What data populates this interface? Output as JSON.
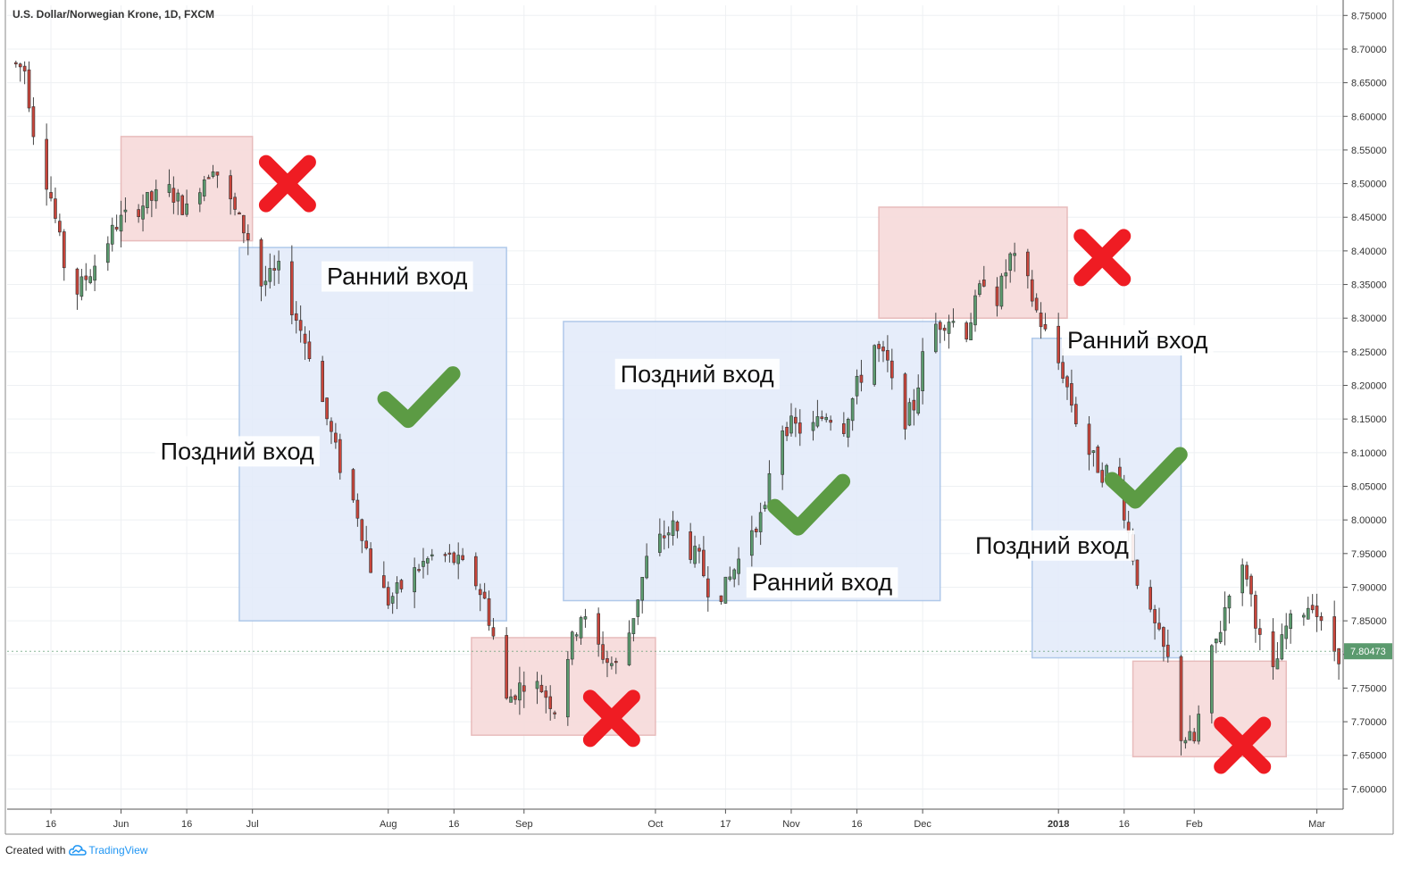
{
  "header": {
    "title": "U.S. Dollar/Norwegian Krone, 1D, FXCM"
  },
  "footer": {
    "created_with": "Created with",
    "brand": "TradingView"
  },
  "chart_data": {
    "type": "candlestick",
    "y_ticks": [
      "8.75000",
      "8.70000",
      "8.65000",
      "8.60000",
      "8.55000",
      "8.50000",
      "8.45000",
      "8.40000",
      "8.35000",
      "8.30000",
      "8.25000",
      "8.20000",
      "8.15000",
      "8.10000",
      "8.05000",
      "8.00000",
      "7.95000",
      "7.90000",
      "7.85000",
      "7.80000",
      "7.75000",
      "7.70000",
      "7.65000",
      "7.60000"
    ],
    "ylim": [
      7.57,
      8.765
    ],
    "last_price": "7.80473",
    "x_ticks": [
      {
        "label": "16",
        "x": "2017-05-16"
      },
      {
        "label": "Jun",
        "x": "2017-06-01"
      },
      {
        "label": "16",
        "x": "2017-06-16"
      },
      {
        "label": "Jul",
        "x": "2017-07-01"
      },
      {
        "label": "Aug",
        "x": "2017-08-01"
      },
      {
        "label": "16",
        "x": "2017-08-16"
      },
      {
        "label": "Sep",
        "x": "2017-09-01"
      },
      {
        "label": "Oct",
        "x": "2017-10-01"
      },
      {
        "label": "17",
        "x": "2017-10-17"
      },
      {
        "label": "Nov",
        "x": "2017-11-01"
      },
      {
        "label": "16",
        "x": "2017-11-16"
      },
      {
        "label": "Dec",
        "x": "2017-12-01"
      },
      {
        "label": "2018",
        "x": "2018-01-01",
        "bold": true
      },
      {
        "label": "16",
        "x": "2018-01-16"
      },
      {
        "label": "Feb",
        "x": "2018-02-01"
      },
      {
        "label": "Mar",
        "x": "2018-03-01"
      }
    ],
    "xlim": [
      "2017-05-06",
      "2018-03-07"
    ],
    "price_path": [
      [
        "2017-05-07",
        8.68
      ],
      [
        "2017-05-10",
        8.67
      ],
      [
        "2017-05-12",
        8.58
      ],
      [
        "2017-05-16",
        8.48
      ],
      [
        "2017-05-19",
        8.38
      ],
      [
        "2017-05-22",
        8.34
      ],
      [
        "2017-05-26",
        8.38
      ],
      [
        "2017-05-31",
        8.44
      ],
      [
        "2017-06-06",
        8.47
      ],
      [
        "2017-06-12",
        8.49
      ],
      [
        "2017-06-16",
        8.46
      ],
      [
        "2017-06-19",
        8.5
      ],
      [
        "2017-06-22",
        8.53
      ],
      [
        "2017-06-26",
        8.47
      ],
      [
        "2017-06-30",
        8.42
      ],
      [
        "2017-07-03",
        8.35
      ],
      [
        "2017-07-07",
        8.37
      ],
      [
        "2017-07-11",
        8.3
      ],
      [
        "2017-07-14",
        8.25
      ],
      [
        "2017-07-18",
        8.15
      ],
      [
        "2017-07-21",
        8.08
      ],
      [
        "2017-07-25",
        8.01
      ],
      [
        "2017-07-28",
        7.93
      ],
      [
        "2017-08-01",
        7.88
      ],
      [
        "2017-08-04",
        7.9
      ],
      [
        "2017-08-08",
        7.93
      ],
      [
        "2017-08-12",
        7.95
      ],
      [
        "2017-08-16",
        7.94
      ],
      [
        "2017-08-20",
        7.92
      ],
      [
        "2017-08-23",
        7.88
      ],
      [
        "2017-08-26",
        7.8
      ],
      [
        "2017-08-28",
        7.73
      ],
      [
        "2017-09-01",
        7.76
      ],
      [
        "2017-09-05",
        7.75
      ],
      [
        "2017-09-08",
        7.72
      ],
      [
        "2017-09-11",
        7.8
      ],
      [
        "2017-09-14",
        7.86
      ],
      [
        "2017-09-17",
        7.82
      ],
      [
        "2017-09-20",
        7.79
      ],
      [
        "2017-09-23",
        7.78
      ],
      [
        "2017-09-26",
        7.86
      ],
      [
        "2017-09-29",
        7.94
      ],
      [
        "2017-10-02",
        7.97
      ],
      [
        "2017-10-05",
        7.99
      ],
      [
        "2017-10-08",
        7.96
      ],
      [
        "2017-10-11",
        7.94
      ],
      [
        "2017-10-14",
        7.88
      ],
      [
        "2017-10-17",
        7.9
      ],
      [
        "2017-10-20",
        7.94
      ],
      [
        "2017-10-23",
        7.99
      ],
      [
        "2017-10-26",
        8.01
      ],
      [
        "2017-10-28",
        8.14
      ],
      [
        "2017-11-01",
        8.14
      ],
      [
        "2017-11-05",
        8.13
      ],
      [
        "2017-11-09",
        8.16
      ],
      [
        "2017-11-13",
        8.14
      ],
      [
        "2017-11-16",
        8.2
      ],
      [
        "2017-11-20",
        8.26
      ],
      [
        "2017-11-23",
        8.23
      ],
      [
        "2017-11-26",
        8.14
      ],
      [
        "2017-11-29",
        8.17
      ],
      [
        "2017-12-01",
        8.24
      ],
      [
        "2017-12-04",
        8.29
      ],
      [
        "2017-12-07",
        8.3
      ],
      [
        "2017-12-11",
        8.28
      ],
      [
        "2017-12-15",
        8.36
      ],
      [
        "2017-12-18",
        8.33
      ],
      [
        "2017-12-21",
        8.39
      ],
      [
        "2017-12-24",
        8.37
      ],
      [
        "2017-12-27",
        8.31
      ],
      [
        "2017-12-30",
        8.26
      ],
      [
        "2018-01-02",
        8.22
      ],
      [
        "2018-01-05",
        8.15
      ],
      [
        "2018-01-08",
        8.1
      ],
      [
        "2018-01-11",
        8.07
      ],
      [
        "2018-01-14",
        8.08
      ],
      [
        "2018-01-17",
        7.98
      ],
      [
        "2018-01-20",
        7.88
      ],
      [
        "2018-01-23",
        7.84
      ],
      [
        "2018-01-26",
        7.79
      ],
      [
        "2018-01-29",
        7.68
      ],
      [
        "2018-02-01",
        7.67
      ],
      [
        "2018-02-04",
        7.78
      ],
      [
        "2018-02-07",
        7.84
      ],
      [
        "2018-02-10",
        7.93
      ],
      [
        "2018-02-13",
        7.92
      ],
      [
        "2018-02-16",
        7.82
      ],
      [
        "2018-02-19",
        7.77
      ],
      [
        "2018-02-22",
        7.84
      ],
      [
        "2018-02-25",
        7.86
      ],
      [
        "2018-02-28",
        7.88
      ],
      [
        "2018-03-03",
        7.82
      ],
      [
        "2018-03-06",
        7.8
      ]
    ],
    "zones": [
      {
        "kind": "blue",
        "x0": "2017-06-28",
        "x1": "2017-08-28",
        "y0": 7.85,
        "y1": 8.405
      },
      {
        "kind": "blue",
        "x0": "2017-09-10",
        "x1": "2017-12-05",
        "y0": 7.88,
        "y1": 8.295
      },
      {
        "kind": "blue",
        "x0": "2017-12-26",
        "x1": "2018-01-29",
        "y0": 7.795,
        "y1": 8.27
      },
      {
        "kind": "red",
        "x0": "2017-06-01",
        "x1": "2017-07-01",
        "y0": 8.415,
        "y1": 8.57
      },
      {
        "kind": "red",
        "x0": "2017-08-20",
        "x1": "2017-10-01",
        "y0": 7.68,
        "y1": 7.825
      },
      {
        "kind": "red",
        "x0": "2017-11-21",
        "x1": "2018-01-03",
        "y0": 8.3,
        "y1": 8.465
      },
      {
        "kind": "red",
        "x0": "2018-01-18",
        "x1": "2018-02-22",
        "y0": 7.648,
        "y1": 7.79
      }
    ],
    "annotations": [
      {
        "text": "Ранний вход",
        "x": "2017-07-18",
        "y": 8.35
      },
      {
        "text": "Поздний вход",
        "x": "2017-06-10",
        "y": 8.09
      },
      {
        "text": "Поздний вход",
        "x": "2017-09-23",
        "y": 8.205
      },
      {
        "text": "Ранний вход",
        "x": "2017-10-23",
        "y": 7.895
      },
      {
        "text": "Ранний вход",
        "x": "2018-01-03",
        "y": 8.255
      },
      {
        "text": "Поздний вход",
        "x": "2017-12-13",
        "y": 7.95
      }
    ],
    "markers": [
      {
        "kind": "cross",
        "x": "2017-07-09",
        "y": 8.5
      },
      {
        "kind": "check",
        "x": "2017-08-08",
        "y": 8.18
      },
      {
        "kind": "cross",
        "x": "2017-09-21",
        "y": 7.705
      },
      {
        "kind": "check",
        "x": "2017-11-05",
        "y": 8.02
      },
      {
        "kind": "cross",
        "x": "2018-01-11",
        "y": 8.39
      },
      {
        "kind": "check",
        "x": "2018-01-21",
        "y": 8.06
      },
      {
        "kind": "cross",
        "x": "2018-02-12",
        "y": 7.665
      }
    ],
    "colors": {
      "bull": "#5b9a6e",
      "bear": "#c8453b",
      "zone_blue_fill": "#e4ecfa",
      "zone_blue_stroke": "#a8c4e8",
      "zone_red_fill": "#f7dcdc",
      "zone_red_stroke": "#e7b9b9",
      "cross": "#ef1c23",
      "check": "#5c9b44",
      "grid": "#eef0f3",
      "axis": "#555555",
      "price_badge": "#5b9a6e"
    }
  }
}
